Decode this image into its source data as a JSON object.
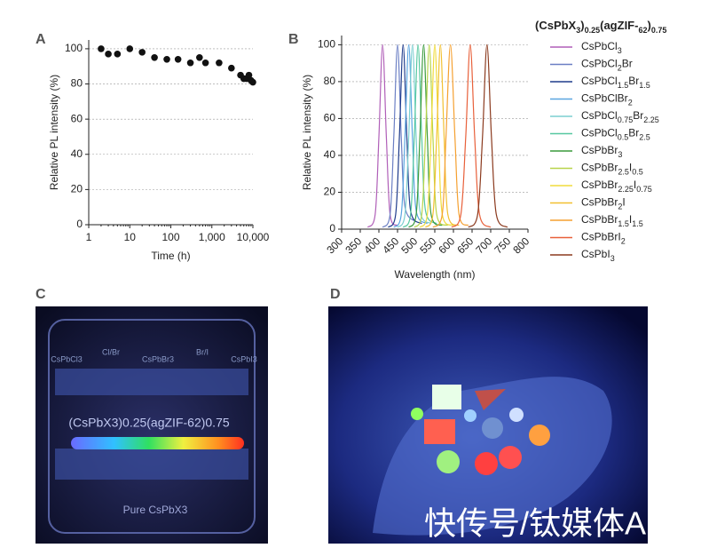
{
  "chart_data": [
    {
      "type": "scatter",
      "panel": "A",
      "x_label": "Time (h)",
      "y_label": "Relative PL intensity (%)",
      "x": [
        2,
        3,
        5,
        10,
        20,
        40,
        80,
        150,
        300,
        500,
        700,
        1500,
        3000,
        5000,
        6000,
        7000,
        8000,
        9000,
        10000
      ],
      "values": [
        100,
        97,
        97,
        100,
        98,
        95,
        94,
        94,
        92,
        95,
        92,
        92,
        89,
        85,
        83,
        83,
        85,
        82,
        81
      ],
      "color": "#111111",
      "log_x": true,
      "grid": true,
      "xlim": [
        1,
        10000
      ],
      "xticks": [
        1,
        10,
        100,
        {
          "value": 1000,
          "label": "1,000"
        },
        {
          "value": 10000,
          "label": "10,000"
        }
      ],
      "ylim": [
        0,
        105
      ],
      "yticks": [
        0,
        20,
        40,
        60,
        80,
        100
      ]
    },
    {
      "type": "line",
      "panel": "B",
      "x_label": "Wavelength (nm)",
      "y_label": "Relative PL intensity (%)",
      "legend_title": "(CsPbX3)0.25(agZIF-62)0.75",
      "legend": "right",
      "xlim": [
        300,
        800
      ],
      "xticks": [
        300,
        350,
        400,
        450,
        500,
        550,
        600,
        650,
        700,
        750,
        800
      ],
      "ylim": [
        0,
        105
      ],
      "yticks": [
        0,
        20,
        40,
        60,
        80,
        100
      ],
      "grid": true,
      "series": [
        {
          "name": "CsPbCl3",
          "color": "#b05fb8",
          "x": [
            370,
            390,
            400,
            410,
            420,
            430,
            450
          ],
          "values": [
            1,
            8,
            50,
            100,
            50,
            8,
            2
          ]
        },
        {
          "name": "CsPbCl2Br",
          "color": "#6b7fc4",
          "x": [
            410,
            430,
            440,
            450,
            460,
            470,
            500
          ],
          "values": [
            1,
            8,
            50,
            100,
            50,
            12,
            4
          ]
        },
        {
          "name": "CsPbCl1.5Br1.5",
          "color": "#1f3c8c",
          "x": [
            425,
            445,
            455,
            465,
            475,
            485,
            515
          ],
          "values": [
            1,
            8,
            50,
            100,
            50,
            10,
            3
          ]
        },
        {
          "name": "CsPbClBr2",
          "color": "#5aa5e0",
          "x": [
            440,
            460,
            470,
            480,
            490,
            500,
            530
          ],
          "values": [
            1,
            8,
            50,
            100,
            50,
            10,
            3
          ]
        },
        {
          "name": "CsPbCl0.75Br2.25",
          "color": "#7ccfd0",
          "x": [
            450,
            470,
            480,
            490,
            500,
            510,
            540
          ],
          "values": [
            1,
            8,
            50,
            100,
            50,
            10,
            3
          ]
        },
        {
          "name": "CsPbCl0.5Br2.5",
          "color": "#55c8a0",
          "x": [
            465,
            485,
            495,
            505,
            515,
            525,
            555
          ],
          "values": [
            1,
            8,
            50,
            100,
            50,
            10,
            3
          ]
        },
        {
          "name": "CsPbBr3",
          "color": "#3a9a3c",
          "x": [
            480,
            500,
            510,
            520,
            530,
            540,
            570
          ],
          "values": [
            1,
            8,
            50,
            100,
            50,
            8,
            2
          ]
        },
        {
          "name": "CsPbBr2.5I0.5",
          "color": "#b8d44a",
          "x": [
            495,
            515,
            525,
            535,
            545,
            555,
            585
          ],
          "values": [
            1,
            8,
            50,
            100,
            50,
            8,
            2
          ]
        },
        {
          "name": "CsPbBr2.25I0.75",
          "color": "#f0dc3c",
          "x": [
            510,
            530,
            540,
            550,
            560,
            570,
            600
          ],
          "values": [
            1,
            8,
            50,
            100,
            50,
            8,
            2
          ]
        },
        {
          "name": "CsPbBr2I",
          "color": "#f2c030",
          "x": [
            525,
            545,
            555,
            565,
            575,
            585,
            615
          ],
          "values": [
            1,
            8,
            50,
            100,
            50,
            8,
            2
          ]
        },
        {
          "name": "CsPbBr1.5I1.5",
          "color": "#f5a030",
          "x": [
            545,
            570,
            580,
            592,
            604,
            615,
            640
          ],
          "values": [
            1,
            8,
            50,
            100,
            50,
            8,
            2
          ]
        },
        {
          "name": "CsPbBrI2",
          "color": "#e8603a",
          "x": [
            595,
            620,
            633,
            645,
            657,
            670,
            700
          ],
          "values": [
            1,
            8,
            50,
            100,
            50,
            8,
            1
          ]
        },
        {
          "name": "CsPbI3",
          "color": "#8b3a1e",
          "x": [
            640,
            665,
            678,
            690,
            702,
            715,
            745
          ],
          "values": [
            1,
            8,
            50,
            100,
            50,
            8,
            1
          ]
        }
      ]
    }
  ],
  "photo_c": {
    "panel": "C",
    "labels": [
      "CsPbCl3",
      "Cl/Br",
      "CsPbBr3",
      "Br/I",
      "CsPbI3"
    ],
    "composite": "(CsPbX3)0.25(agZIF-62)0.75",
    "pure": "Pure CsPbX3"
  },
  "photo_d": {
    "panel": "D",
    "watermark": "快传号/钛媒体A"
  }
}
